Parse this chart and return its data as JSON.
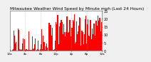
{
  "title": "Milwaukee Weather Wind Speed by Minute mph (Last 24 Hours)",
  "title_fontsize": 4.2,
  "bar_color": "#ff0000",
  "background_color": "#f0f0f0",
  "plot_bg_color": "#ffffff",
  "ylim": [
    0,
    25
  ],
  "yticks": [
    0,
    5,
    10,
    15,
    20,
    25
  ],
  "ytick_fontsize": 3.5,
  "xtick_fontsize": 3.0,
  "n_bars": 1440,
  "grid_color": "#999999",
  "x_labels": [
    "12a",
    "4a",
    "8a",
    "12p",
    "4p",
    "8p",
    "12a"
  ],
  "n_xgrid_lines": 5
}
